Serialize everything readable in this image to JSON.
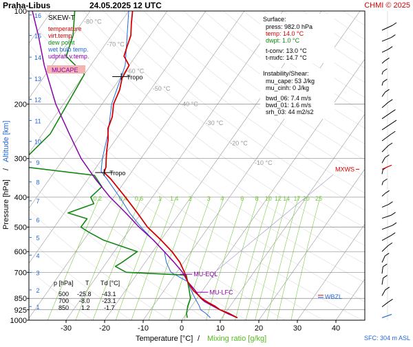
{
  "header": {
    "station": "Praha-Libus",
    "datetime": "24.05.2025 12 UTC",
    "credit": "CHMI © 2025"
  },
  "legend": {
    "title": "SKEW-T",
    "items": [
      {
        "label": "temperature",
        "color": "#d40000"
      },
      {
        "label": "virt.temp.",
        "color": "#d40000"
      },
      {
        "label": "dew point",
        "color": "#118811"
      },
      {
        "label": "wet bulb temp.",
        "color": "#2266dd"
      },
      {
        "label": "udpraft v.temp.",
        "color": "#8800aa"
      }
    ],
    "mucape_label": "MUCAPE"
  },
  "surface": {
    "title": "Surface:",
    "lines": [
      {
        "text": "press: 982.0 hPa",
        "color": "#000000"
      },
      {
        "text": "temp: 14.0 °C",
        "color": "#d40000"
      },
      {
        "text": "dwpt: 1.0 °C",
        "color": "#118811"
      },
      {
        "text": "t-conv: 13.0 °C",
        "color": "#000000"
      },
      {
        "text": "t-mxfc: 14.7 °C",
        "color": "#000000"
      }
    ]
  },
  "instability": {
    "title": "Instability/Shear:",
    "lines": [
      "mu_cape: 53 J/kg",
      "mu_cinh: 0 J/kg",
      "bwd_06: 7.4 m/s",
      "bwd_01: 1.6 m/s",
      "srh_03: 44 m2/s2"
    ]
  },
  "table": {
    "headers": [
      "p [hPa]",
      "T",
      "Td [°C]"
    ],
    "rows": [
      [
        "500",
        "-25.8",
        "-43.1"
      ],
      [
        "700",
        "-8.0",
        "-23.1"
      ],
      [
        "850",
        "1.2",
        "-1.7"
      ]
    ]
  },
  "annotations": {
    "tropo": "Tropo",
    "mxws": "MXWS",
    "mu_eql": "MU-EQL",
    "mu_lfc": "MU-LFC",
    "wbzl": "WBZL",
    "sfc": "SFC: 304 m ASL"
  },
  "colors": {
    "temperature": "#d40000",
    "dewpoint": "#118811",
    "wetbulb": "#2266dd",
    "parcel": "#8800aa",
    "mixing": "#77cc44",
    "isotherm": "#999999"
  },
  "chart_data": {
    "type": "line",
    "diagram": "skew-t",
    "xlabel": "Temperature [°C]",
    "xlabel_sep": "/",
    "xlabel2": "Mixing ratio [g/kg]",
    "ylabel": "Pressure [hPa]",
    "ylabel_sep": "/",
    "ylabel2": "Altitude [km]",
    "x_ticks": [
      -30,
      -20,
      -10,
      0,
      10,
      20,
      30,
      40
    ],
    "pressure_ticks": [
      100,
      200,
      300,
      400,
      500,
      600,
      700,
      850,
      925,
      1000
    ],
    "altitude_ticks": [
      {
        "km": 1,
        "p": 903
      },
      {
        "km": 2,
        "p": 798
      },
      {
        "km": 3,
        "p": 701
      },
      {
        "km": 4,
        "p": 616
      },
      {
        "km": 5,
        "p": 540
      },
      {
        "km": 6,
        "p": 472
      },
      {
        "km": 7,
        "p": 411
      },
      {
        "km": 8,
        "p": 357
      },
      {
        "km": 9,
        "p": 308
      },
      {
        "km": 10,
        "p": 264
      },
      {
        "km": 11,
        "p": 226
      },
      {
        "km": 12,
        "p": 193
      },
      {
        "km": 13,
        "p": 165
      },
      {
        "km": 14,
        "p": 141
      },
      {
        "km": 15,
        "p": 120
      },
      {
        "km": 16,
        "p": 103
      }
    ],
    "isotherm_labels": [
      {
        "t": -80,
        "p": 110
      },
      {
        "t": -70,
        "p": 130
      },
      {
        "t": -60,
        "p": 159
      },
      {
        "t": -50,
        "p": 181
      },
      {
        "t": -40,
        "p": 203
      },
      {
        "t": -30,
        "p": 234
      },
      {
        "t": -20,
        "p": 272
      },
      {
        "t": -10,
        "p": 315
      }
    ],
    "mixing_ratios": [
      0.2,
      0.4,
      0.6,
      1,
      1.4,
      2,
      3,
      4,
      6,
      8,
      10,
      12,
      14,
      17,
      20,
      25
    ],
    "mixing_label_p": 415,
    "temperature": [
      {
        "p": 982,
        "t": 14.0
      },
      {
        "p": 950,
        "t": 11.0
      },
      {
        "p": 925,
        "t": 8.0
      },
      {
        "p": 900,
        "t": 6.0
      },
      {
        "p": 875,
        "t": 3.5
      },
      {
        "p": 850,
        "t": 1.2
      },
      {
        "p": 800,
        "t": -2.5
      },
      {
        "p": 750,
        "t": -5.5
      },
      {
        "p": 700,
        "t": -8.0
      },
      {
        "p": 650,
        "t": -11.0
      },
      {
        "p": 600,
        "t": -15.0
      },
      {
        "p": 550,
        "t": -20.0
      },
      {
        "p": 500,
        "t": -25.8
      },
      {
        "p": 450,
        "t": -31.0
      },
      {
        "p": 400,
        "t": -37.0
      },
      {
        "p": 350,
        "t": -44.0
      },
      {
        "p": 333,
        "t": -47.0
      },
      {
        "p": 320,
        "t": -47.5
      },
      {
        "p": 300,
        "t": -49.0
      },
      {
        "p": 280,
        "t": -50.5
      },
      {
        "p": 260,
        "t": -52.0
      },
      {
        "p": 240,
        "t": -54.0
      },
      {
        "p": 220,
        "t": -55.0
      },
      {
        "p": 200,
        "t": -57.0
      },
      {
        "p": 180,
        "t": -58.0
      },
      {
        "p": 165,
        "t": -59.5
      },
      {
        "p": 150,
        "t": -60.0
      },
      {
        "p": 140,
        "t": -63.0
      },
      {
        "p": 130,
        "t": -64.0
      },
      {
        "p": 120,
        "t": -65.0
      },
      {
        "p": 110,
        "t": -67.0
      },
      {
        "p": 100,
        "t": -69.0
      }
    ],
    "dewpoint": [
      {
        "p": 982,
        "t": 1.0
      },
      {
        "p": 950,
        "t": 0.0
      },
      {
        "p": 925,
        "t": -0.5
      },
      {
        "p": 900,
        "t": -1.0
      },
      {
        "p": 850,
        "t": -1.7
      },
      {
        "p": 800,
        "t": -3.5
      },
      {
        "p": 750,
        "t": -5.5
      },
      {
        "p": 715,
        "t": -7.0
      },
      {
        "p": 700,
        "t": -23.1
      },
      {
        "p": 670,
        "t": -27.0
      },
      {
        "p": 650,
        "t": -26.0
      },
      {
        "p": 600,
        "t": -24.0
      },
      {
        "p": 550,
        "t": -35.0
      },
      {
        "p": 520,
        "t": -40.0
      },
      {
        "p": 500,
        "t": -43.1
      },
      {
        "p": 470,
        "t": -43.0
      },
      {
        "p": 450,
        "t": -49.0
      },
      {
        "p": 420,
        "t": -44.0
      },
      {
        "p": 400,
        "t": -46.0
      },
      {
        "p": 370,
        "t": -45.0
      },
      {
        "p": 340,
        "t": -49.0
      },
      {
        "p": 320,
        "t": -68.0
      },
      {
        "p": 300,
        "t": -70.0
      },
      {
        "p": 250,
        "t": -68.0
      },
      {
        "p": 200,
        "t": -69.0
      },
      {
        "p": 160,
        "t": -70.0
      },
      {
        "p": 140,
        "t": -78.0
      },
      {
        "p": 120,
        "t": -80.0
      },
      {
        "p": 100,
        "t": -84.0
      }
    ],
    "wetbulb": [
      {
        "p": 982,
        "t": 7.0
      },
      {
        "p": 950,
        "t": 5.0
      },
      {
        "p": 925,
        "t": 3.0
      },
      {
        "p": 900,
        "t": 2.0
      },
      {
        "p": 850,
        "t": -0.5
      },
      {
        "p": 800,
        "t": -3.0
      },
      {
        "p": 750,
        "t": -5.5
      },
      {
        "p": 700,
        "t": -11.5
      },
      {
        "p": 650,
        "t": -14.5
      },
      {
        "p": 600,
        "t": -17.0
      },
      {
        "p": 550,
        "t": -22.0
      },
      {
        "p": 500,
        "t": -27.5
      },
      {
        "p": 450,
        "t": -33.0
      },
      {
        "p": 400,
        "t": -38.5
      },
      {
        "p": 350,
        "t": -45.0
      },
      {
        "p": 330,
        "t": -48.0
      },
      {
        "p": 300,
        "t": -50.0
      },
      {
        "p": 250,
        "t": -53.0
      },
      {
        "p": 200,
        "t": -57.5
      },
      {
        "p": 150,
        "t": -61.0
      },
      {
        "p": 100,
        "t": -70.0
      }
    ],
    "parcel": [
      {
        "p": 982,
        "t": 14.0
      },
      {
        "p": 950,
        "t": 10.5
      },
      {
        "p": 925,
        "t": 8.0
      },
      {
        "p": 900,
        "t": 5.5
      },
      {
        "p": 870,
        "t": 2.5
      },
      {
        "p": 850,
        "t": 1.0
      },
      {
        "p": 800,
        "t": -2.0
      },
      {
        "p": 750,
        "t": -5.5
      },
      {
        "p": 700,
        "t": -8.5
      },
      {
        "p": 650,
        "t": -12.5
      },
      {
        "p": 600,
        "t": -17.0
      },
      {
        "p": 550,
        "t": -22.0
      },
      {
        "p": 500,
        "t": -28.0
      },
      {
        "p": 450,
        "t": -34.0
      },
      {
        "p": 400,
        "t": -41.0
      },
      {
        "p": 350,
        "t": -48.0
      },
      {
        "p": 300,
        "t": -55.5
      },
      {
        "p": 250,
        "t": -63.0
      },
      {
        "p": 200,
        "t": -72.0
      },
      {
        "p": 150,
        "t": -82.0
      },
      {
        "p": 120,
        "t": -89.0
      },
      {
        "p": 100,
        "t": -95.0
      }
    ],
    "tropopauses": [
      {
        "p": 163,
        "t": -60.0
      },
      {
        "p": 333,
        "t": -47.0
      }
    ],
    "mxws_p": 325,
    "mu_eql_p": 710,
    "mu_lfc_p": 812,
    "wbzl_p": 835
  }
}
